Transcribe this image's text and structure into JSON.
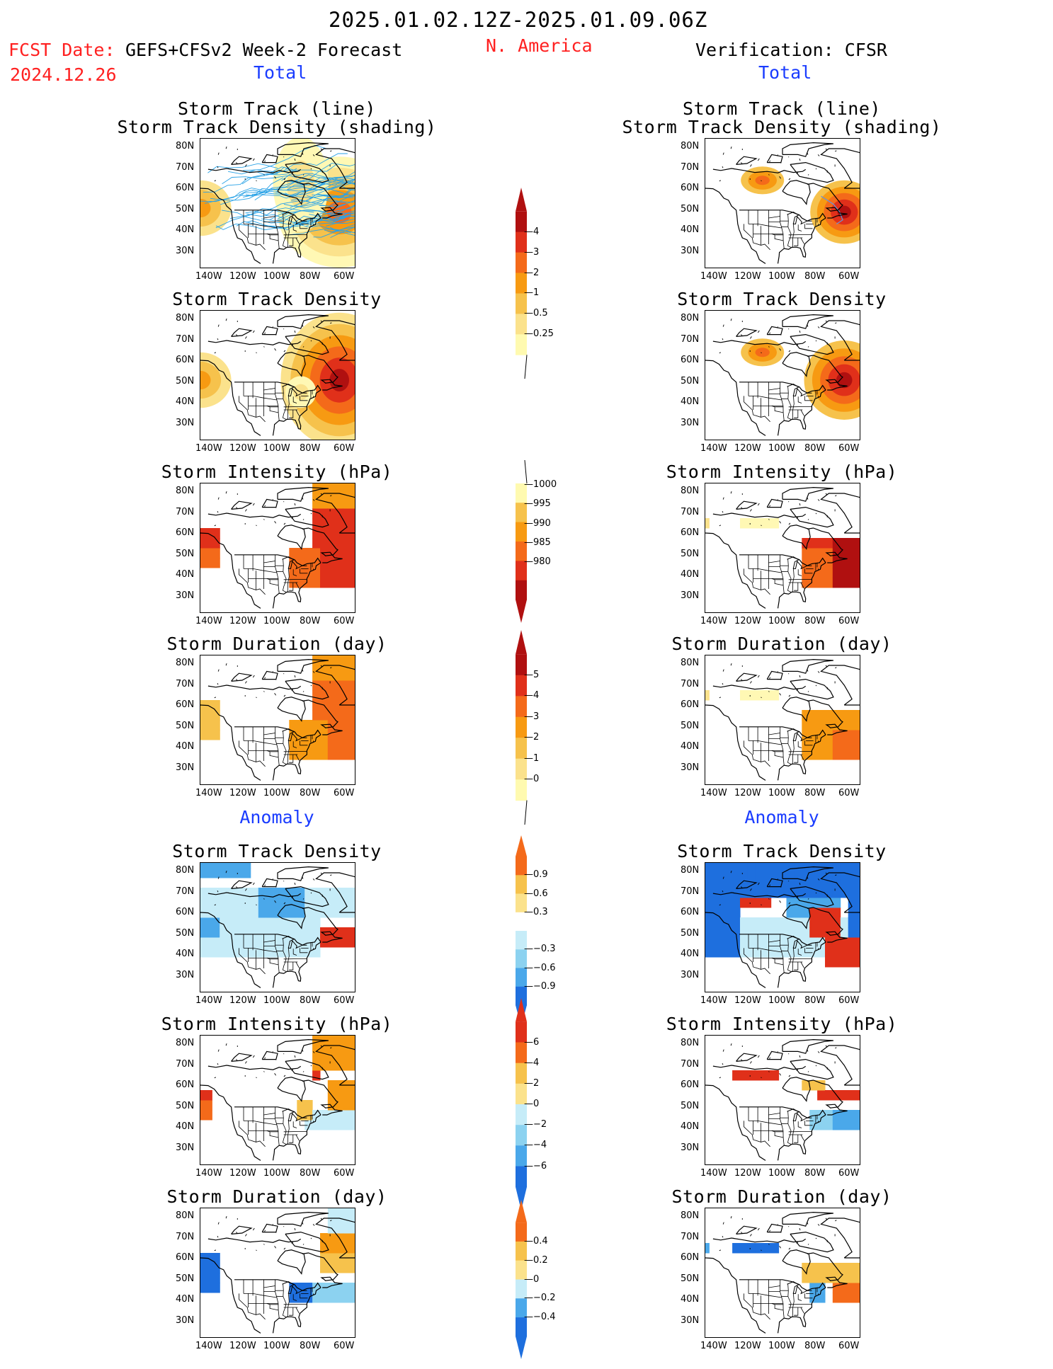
{
  "header": {
    "date_range": "2025.01.02.12Z-2025.01.09.06Z",
    "fcst_label": "FCST Date:",
    "fcst_date": "2024.12.26",
    "model": "GEFS+CFSv2 Week-2 Forecast",
    "region": "N. America",
    "verification": "Verification: CFSR",
    "total_left": "Total",
    "total_right": "Total",
    "anomaly_left": "Anomaly",
    "anomaly_right": "Anomaly"
  },
  "panel_titles": {
    "track_line": "Storm Track (line)",
    "track_density_shading": "Storm Track Density (shading)",
    "track_density": "Storm Track Density",
    "intensity": "Storm Intensity (hPa)",
    "duration": "Storm Duration (day)"
  },
  "axes": {
    "lat_labels": [
      "80N",
      "70N",
      "60N",
      "50N",
      "40N",
      "30N"
    ],
    "lon_labels": [
      "140W",
      "120W",
      "100W",
      "80W",
      "60W"
    ]
  },
  "colorbars": [
    {
      "name": "track-density-total",
      "labels": [
        "4",
        "3",
        "2",
        "1",
        "0.5",
        "0.25"
      ]
    },
    {
      "name": "intensity-total",
      "labels": [
        "1000",
        "995",
        "990",
        "985",
        "980"
      ]
    },
    {
      "name": "duration-total",
      "labels": [
        "5",
        "4",
        "3",
        "2",
        "1",
        "0"
      ]
    },
    {
      "name": "track-density-anomaly",
      "labels": [
        "0.9",
        "0.6",
        "0.3",
        "−0.3",
        "−0.6",
        "−0.9"
      ]
    },
    {
      "name": "intensity-anomaly",
      "labels": [
        "6",
        "4",
        "2",
        "0",
        "−2",
        "−4",
        "−6"
      ]
    },
    {
      "name": "duration-anomaly",
      "labels": [
        "0.4",
        "0.2",
        "0",
        "−0.2",
        "−0.4"
      ]
    }
  ],
  "colors": {
    "warm": [
      "#fff8b4",
      "#fbe28c",
      "#f6c24c",
      "#f79a12",
      "#f46a1a",
      "#e0301a",
      "#b01010"
    ],
    "cool": [
      "#c6ecf8",
      "#8cd2f0",
      "#4aa8ea",
      "#1e6fde"
    ],
    "track_line": "#29a2e6"
  }
}
